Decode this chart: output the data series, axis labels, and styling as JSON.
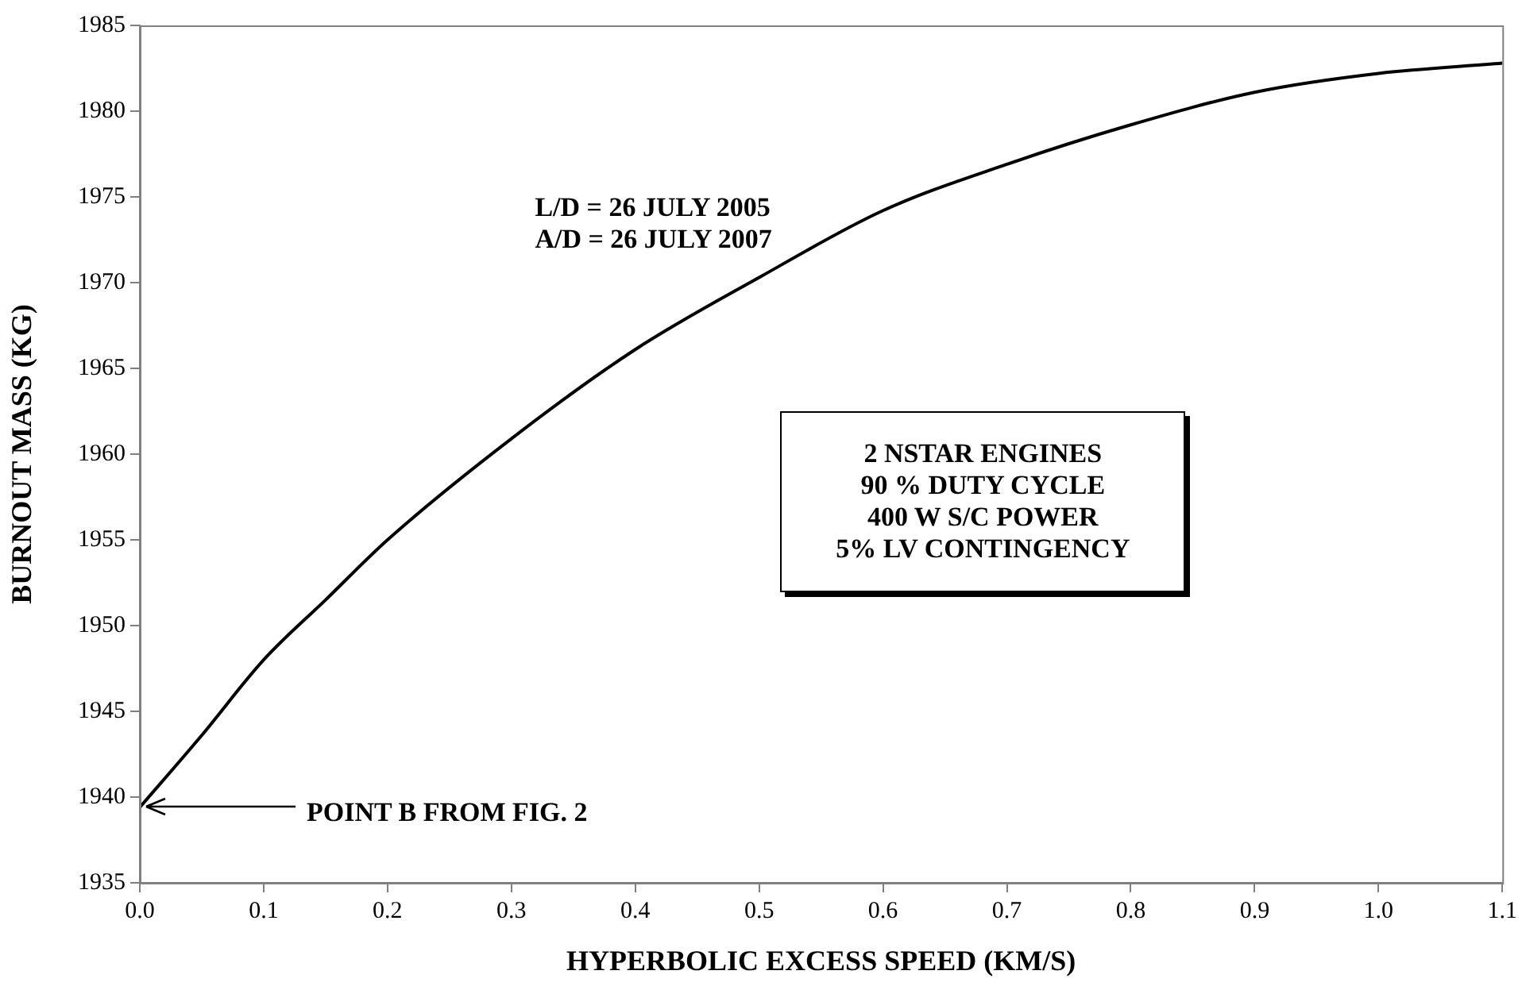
{
  "chart_data": {
    "type": "line",
    "xlabel": "HYPERBOLIC EXCESS SPEED (KM/S)",
    "ylabel": "BURNOUT MASS (KG)",
    "x": [
      0,
      0.05,
      0.1,
      0.15,
      0.2,
      0.3,
      0.4,
      0.5,
      0.6,
      0.7,
      0.8,
      0.9,
      1.0,
      1.1
    ],
    "series": [
      {
        "color": "#000000",
        "values": [
          1939.4,
          1943.6,
          1948.0,
          1951.5,
          1955.0,
          1960.9,
          1966.1,
          1970.3,
          1974.2,
          1976.9,
          1979.2,
          1981.1,
          1982.2,
          1982.8
        ]
      }
    ],
    "xlim": [
      0,
      1.1
    ],
    "ylim": [
      1935,
      1985
    ],
    "xticks": [
      {
        "value": 0,
        "label": "0.0"
      },
      0.1,
      0.2,
      0.3,
      0.4,
      0.5,
      0.6,
      0.7,
      0.8,
      0.9,
      {
        "value": 1,
        "label": "1.0"
      },
      1.1
    ],
    "yticks": [
      1935,
      1940,
      1945,
      1950,
      1955,
      1960,
      1965,
      1970,
      1975,
      1980,
      1985
    ],
    "marker": "none",
    "line_style": "solid",
    "legend": false,
    "annotations": [
      "L/D = 26 JULY 2005\nA/D = 26 JULY 2007",
      "2 NSTAR ENGINES\n90 % DUTY CYCLE\n400 W S/C POWER\n5% LV CONTINGENCY",
      {
        "text": "POINT B FROM FIG. 2",
        "x": 0,
        "y": 1939.4
      }
    ]
  }
}
